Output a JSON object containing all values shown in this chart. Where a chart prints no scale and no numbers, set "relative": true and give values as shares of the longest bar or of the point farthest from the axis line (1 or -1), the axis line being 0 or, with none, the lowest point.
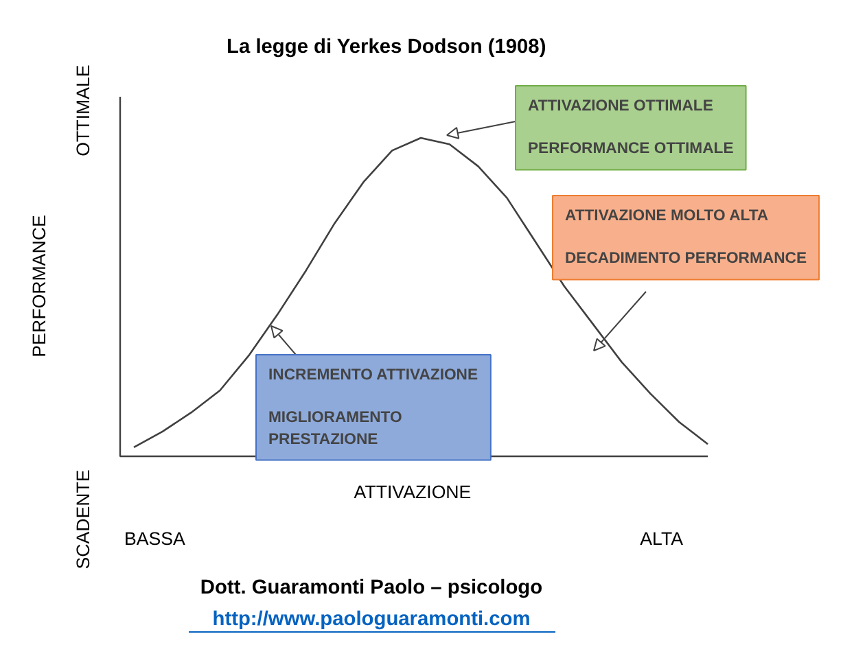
{
  "chart_data": {
    "type": "line",
    "title": "La legge di Yerkes Dodson (1908)",
    "xlabel": "ATTIVAZIONE",
    "ylabel": "PERFORMANCE",
    "relative": true,
    "color": "#404040",
    "categories": [
      null,
      null,
      null,
      null,
      null,
      null,
      null,
      null,
      null,
      null,
      null,
      null,
      null,
      null,
      null,
      null,
      null,
      null,
      null,
      null,
      null
    ],
    "values": [
      0.02,
      0.07,
      0.13,
      0.2,
      0.31,
      0.44,
      0.58,
      0.73,
      0.86,
      0.96,
      1.0,
      0.98,
      0.91,
      0.81,
      0.67,
      0.53,
      0.41,
      0.29,
      0.19,
      0.1,
      0.03
    ],
    "annotations": [
      "OTTIMALE",
      "SCADENTE",
      "BASSA",
      "ALTA",
      "ATTIVAZIONE OTTIMALE\n\nPERFORMANCE OTTIMALE",
      "ATTIVAZIONE MOLTO ALTA\n\nDECADIMENTO PERFORMANCE",
      "INCREMENTO ATTIVAZIONE\n\nMIGLIORAMENTO\nPRESTAZIONE",
      "Dott. Guaramonti Paolo – psicologo",
      "http://www.paologuaramonti.com"
    ]
  }
}
